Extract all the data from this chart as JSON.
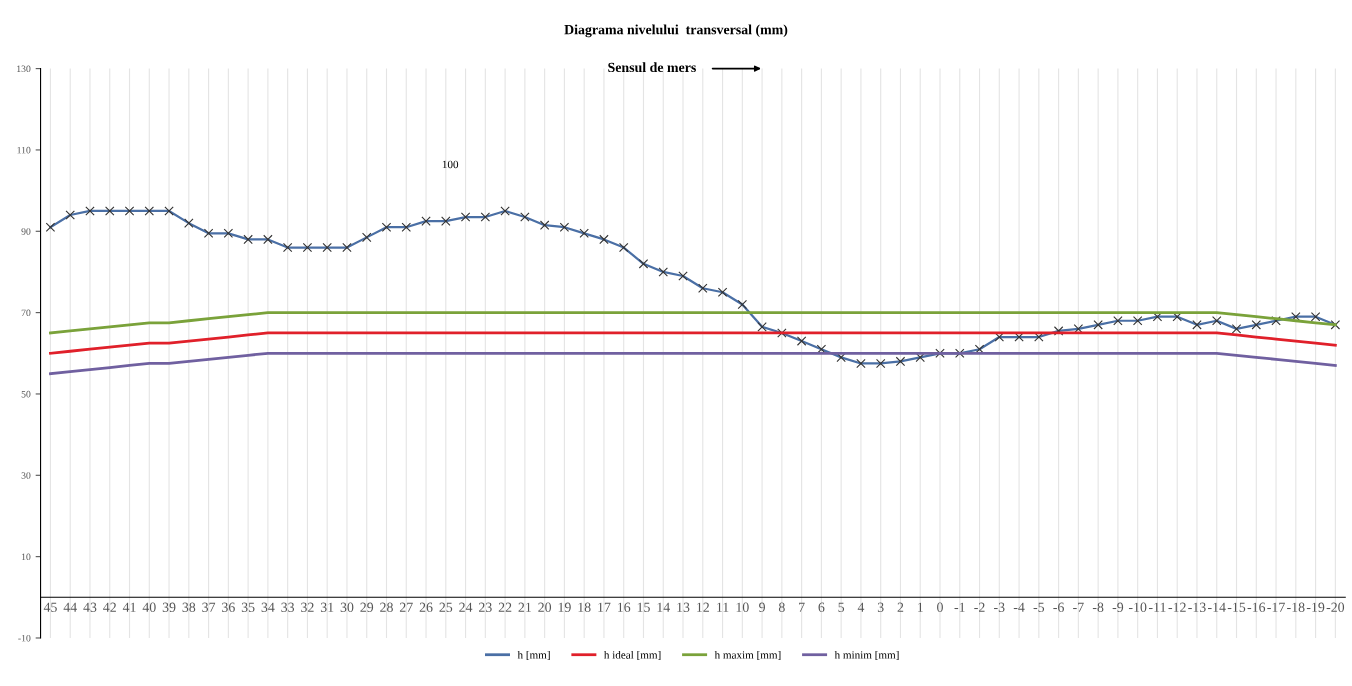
{
  "chart_data": {
    "type": "line",
    "title": "Diagrama nivelului  transversal (mm)",
    "subtitle": "Sensul de mers",
    "categories": [
      "45",
      "44",
      "43",
      "42",
      "41",
      "40",
      "39",
      "38",
      "37",
      "36",
      "35",
      "34",
      "33",
      "32",
      "31",
      "30",
      "29",
      "28",
      "27",
      "26",
      "25",
      "24",
      "23",
      "22",
      "21",
      "20",
      "19",
      "18",
      "17",
      "16",
      "15",
      "14",
      "13",
      "12",
      "11",
      "10",
      "9",
      "8",
      "7",
      "6",
      "5",
      "4",
      "3",
      "2",
      "1",
      "0",
      "-1",
      "-2",
      "-3",
      "-4",
      "-5",
      "-6",
      "-7",
      "-8",
      "-9",
      "-10",
      "-11",
      "-12",
      "-13",
      "-14",
      "-15",
      "-16",
      "-17",
      "-18",
      "-19",
      "-20"
    ],
    "series": [
      {
        "name": "h [mm]",
        "color": "#4a6fa5",
        "marker": "cross",
        "values": [
          91,
          94,
          95,
          95,
          95,
          95,
          95,
          92,
          89.5,
          89.5,
          88,
          88,
          86,
          86,
          86,
          86,
          88.5,
          91,
          91,
          92.5,
          92.5,
          93.5,
          93.5,
          95,
          93.5,
          91.5,
          91,
          89.5,
          88,
          86,
          82,
          80,
          79,
          76,
          75,
          72,
          66.5,
          65,
          63,
          61,
          59,
          57.5,
          57.5,
          58,
          59,
          60,
          60,
          61,
          64,
          64,
          64,
          65.5,
          66,
          67,
          68,
          68,
          69,
          69,
          67,
          68,
          66,
          67,
          68,
          69,
          69,
          67
        ]
      },
      {
        "name": "h ideal [mm]",
        "color": "#e0202a",
        "marker": "none",
        "values": [
          60,
          60.5,
          61,
          61.5,
          62,
          62.5,
          62.5,
          63,
          63.5,
          64,
          64.5,
          65,
          65,
          65,
          65,
          65,
          65,
          65,
          65,
          65,
          65,
          65,
          65,
          65,
          65,
          65,
          65,
          65,
          65,
          65,
          65,
          65,
          65,
          65,
          65,
          65,
          65,
          65,
          65,
          65,
          65,
          65,
          65,
          65,
          65,
          65,
          65,
          65,
          65,
          65,
          65,
          65,
          65,
          65,
          65,
          65,
          65,
          65,
          65,
          65,
          64.5,
          64,
          63.5,
          63,
          62.5,
          62
        ]
      },
      {
        "name": "h maxim [mm]",
        "color": "#7aa23a",
        "marker": "none",
        "values": [
          65,
          65.5,
          66,
          66.5,
          67,
          67.5,
          67.5,
          68,
          68.5,
          69,
          69.5,
          70,
          70,
          70,
          70,
          70,
          70,
          70,
          70,
          70,
          70,
          70,
          70,
          70,
          70,
          70,
          70,
          70,
          70,
          70,
          70,
          70,
          70,
          70,
          70,
          70,
          70,
          70,
          70,
          70,
          70,
          70,
          70,
          70,
          70,
          70,
          70,
          70,
          70,
          70,
          70,
          70,
          70,
          70,
          70,
          70,
          70,
          70,
          70,
          70,
          69.5,
          69,
          68.5,
          68,
          67.5,
          67
        ]
      },
      {
        "name": "h minim [mm]",
        "color": "#7060a0",
        "marker": "none",
        "values": [
          55,
          55.5,
          56,
          56.5,
          57,
          57.5,
          57.5,
          58,
          58.5,
          59,
          59.5,
          60,
          60,
          60,
          60,
          60,
          60,
          60,
          60,
          60,
          60,
          60,
          60,
          60,
          60,
          60,
          60,
          60,
          60,
          60,
          60,
          60,
          60,
          60,
          60,
          60,
          60,
          60,
          60,
          60,
          60,
          60,
          60,
          60,
          60,
          60,
          60,
          60,
          60,
          60,
          60,
          60,
          60,
          60,
          60,
          60,
          60,
          60,
          60,
          60,
          59.5,
          59,
          58.5,
          58,
          57.5,
          57
        ]
      }
    ],
    "ylim": [
      -10,
      130
    ],
    "yticks": [
      130,
      110,
      90,
      70,
      50,
      30,
      10,
      -10
    ],
    "annotations": [
      "100"
    ],
    "grid": "x",
    "legend": "bottom",
    "line_style": "solid"
  }
}
